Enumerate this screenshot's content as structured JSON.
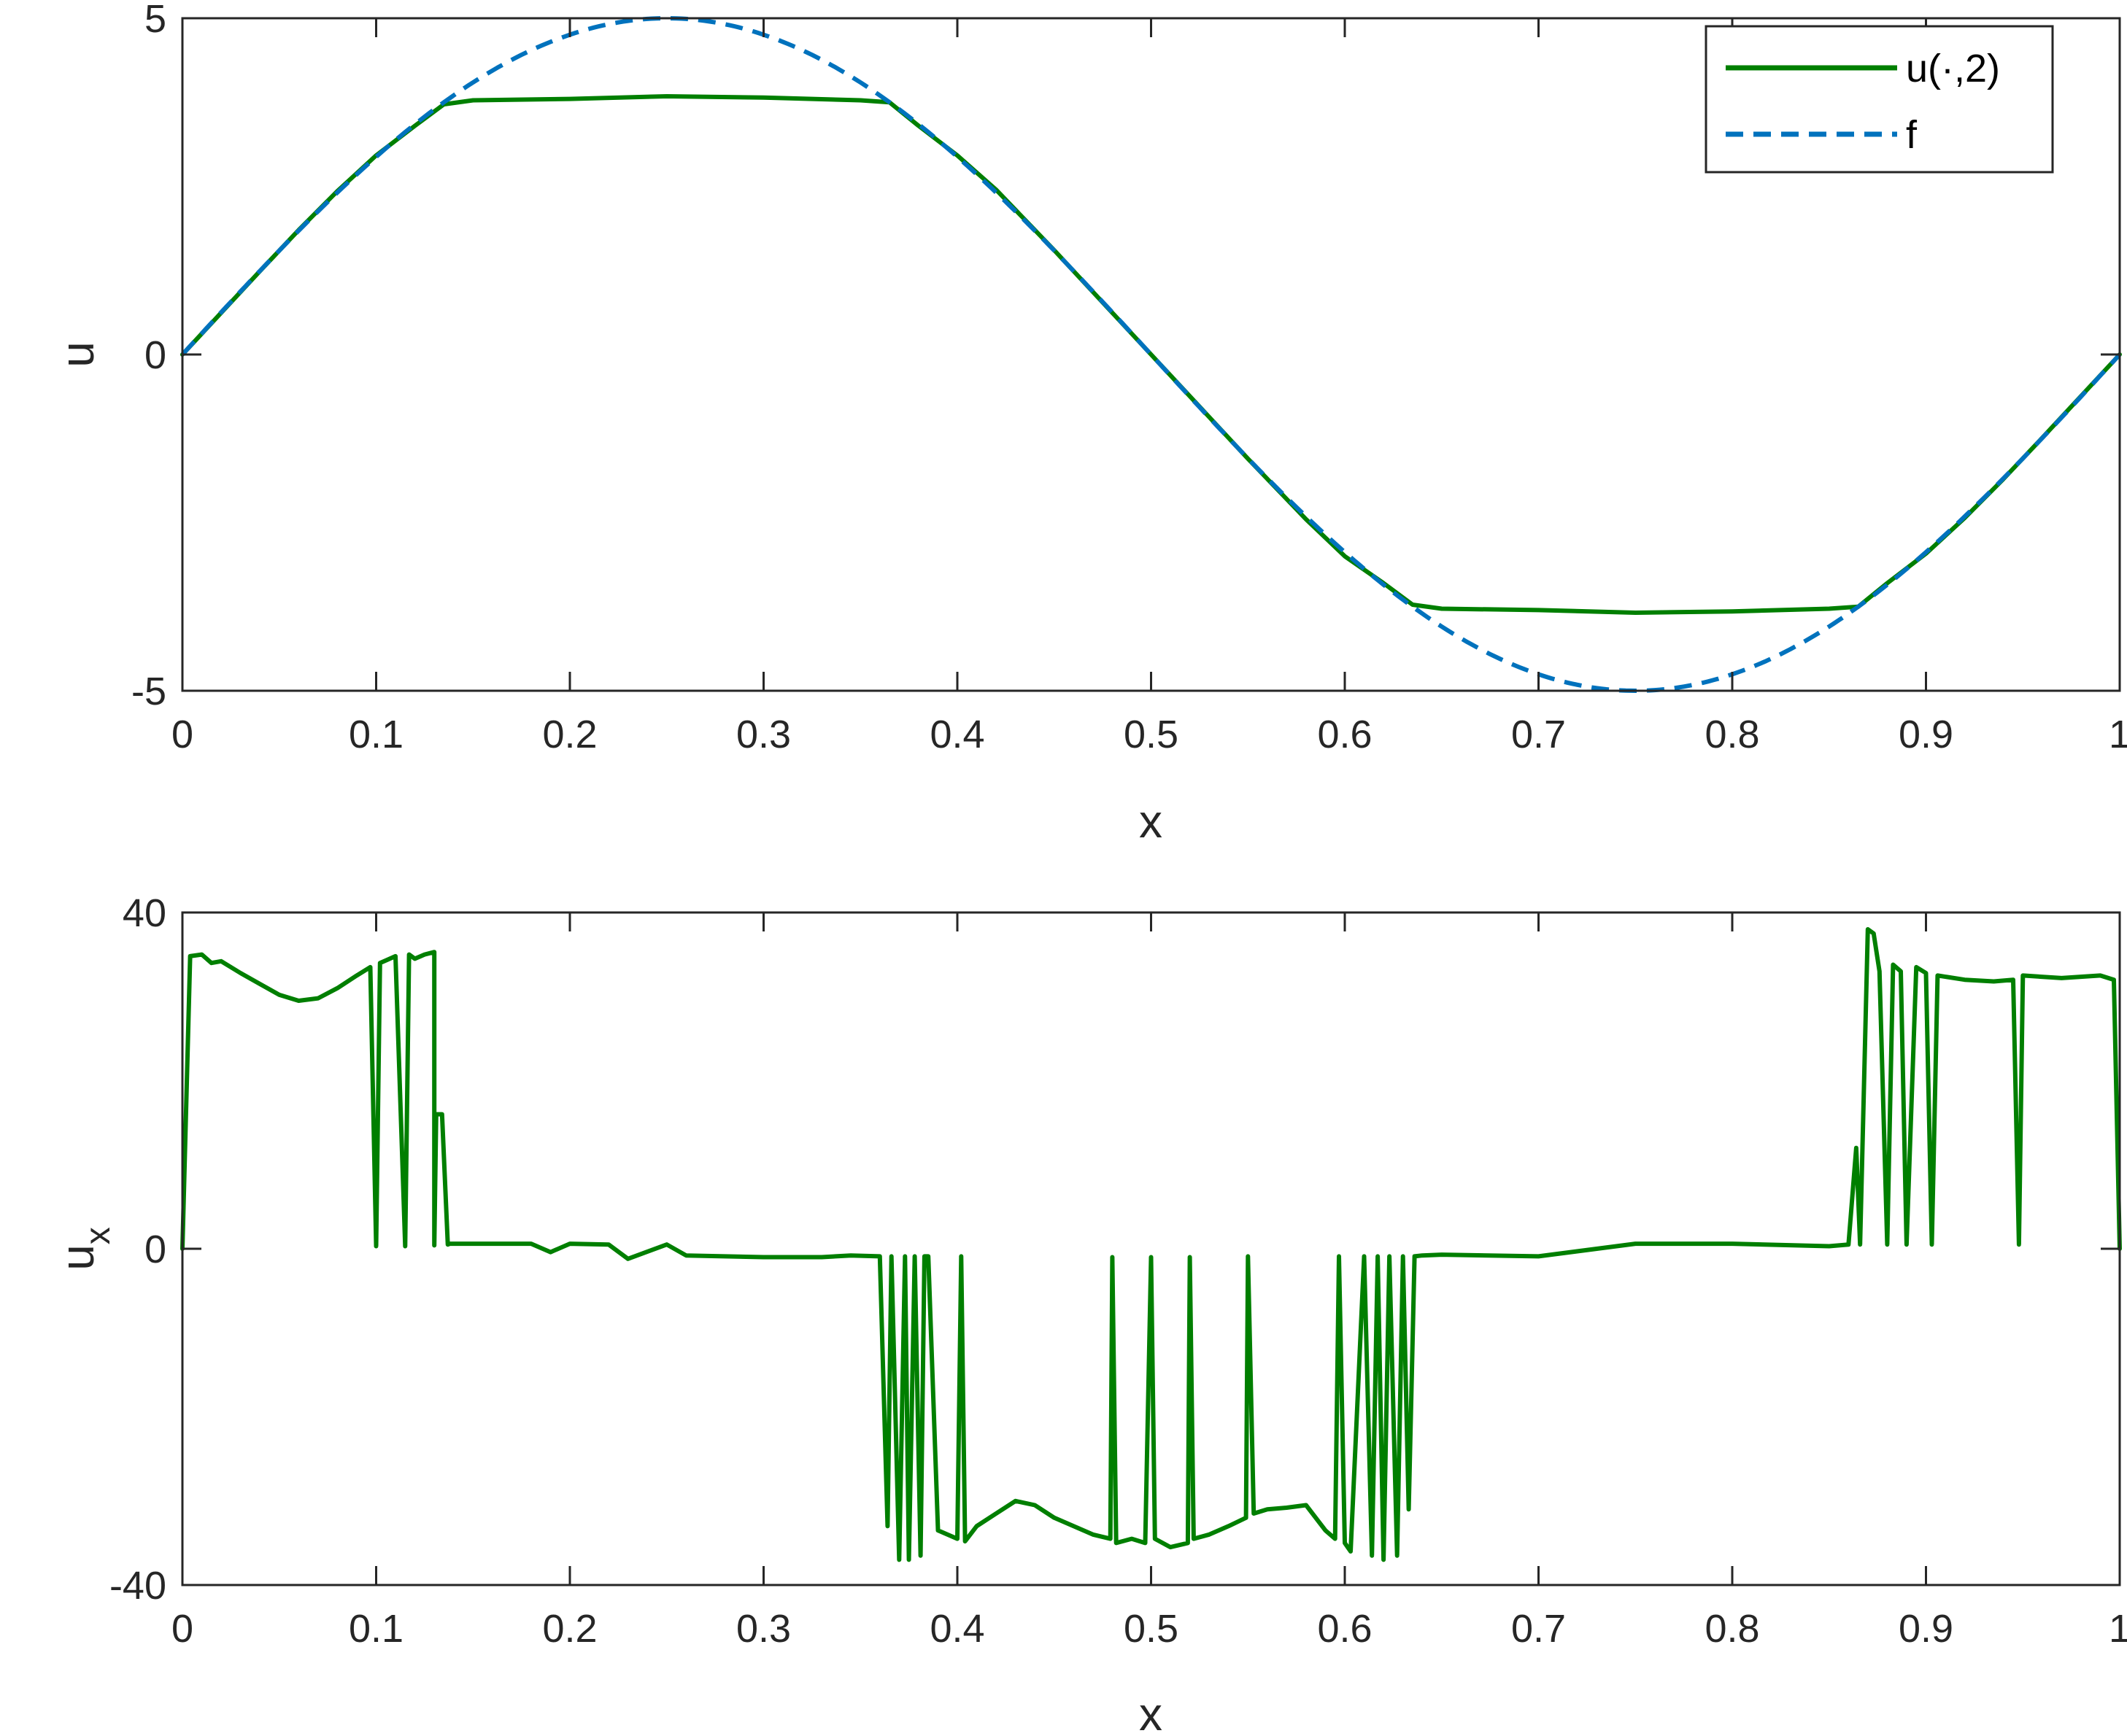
{
  "chart_data": [
    {
      "type": "line",
      "xlabel": "x",
      "ylabel": "u",
      "xlim": [
        0,
        1
      ],
      "ylim": [
        -5,
        5
      ],
      "xticks": [
        0,
        0.1,
        0.2,
        0.3,
        0.4,
        0.5,
        0.6,
        0.7,
        0.8,
        0.9,
        1
      ],
      "xtick_labels": [
        "0",
        "0.1",
        "0.2",
        "0.3",
        "0.4",
        "0.5",
        "0.6",
        "0.7",
        "0.8",
        "0.9",
        "1"
      ],
      "yticks": [
        -5,
        0,
        5
      ],
      "ytick_labels": [
        "-5",
        "0",
        "5"
      ],
      "grid": false,
      "legend_position": "top-right",
      "series": [
        {
          "name": "u(·,2)",
          "color": "#007F00",
          "style": "solid",
          "x": [
            0,
            0.02,
            0.04,
            0.06,
            0.08,
            0.1,
            0.12,
            0.135,
            0.15,
            0.2,
            0.25,
            0.3,
            0.35,
            0.365,
            0.38,
            0.4,
            0.42,
            0.45,
            0.48,
            0.5,
            0.52,
            0.55,
            0.58,
            0.6,
            0.62,
            0.635,
            0.65,
            0.7,
            0.75,
            0.8,
            0.85,
            0.865,
            0.88,
            0.9,
            0.92,
            0.94,
            0.96,
            0.98,
            1
          ],
          "y": [
            0,
            0.62,
            1.24,
            1.85,
            2.43,
            2.96,
            3.4,
            3.72,
            3.78,
            3.8,
            3.84,
            3.82,
            3.78,
            3.75,
            3.4,
            2.96,
            2.45,
            1.55,
            0.62,
            0.0,
            -0.62,
            -1.55,
            -2.45,
            -3.0,
            -3.4,
            -3.72,
            -3.78,
            -3.8,
            -3.84,
            -3.82,
            -3.78,
            -3.75,
            -3.4,
            -2.96,
            -2.43,
            -1.85,
            -1.24,
            -0.62,
            0
          ]
        },
        {
          "name": "f",
          "color": "#0072BD",
          "style": "dashed",
          "function": "5*sin(2*pi*x)"
        }
      ]
    },
    {
      "type": "line",
      "xlabel": "x",
      "ylabel": "u",
      "ylabel_subscript": "x",
      "xlim": [
        0,
        1
      ],
      "ylim": [
        -40,
        40
      ],
      "xticks": [
        0,
        0.1,
        0.2,
        0.3,
        0.4,
        0.5,
        0.6,
        0.7,
        0.8,
        0.9,
        1
      ],
      "xtick_labels": [
        "0",
        "0.1",
        "0.2",
        "0.3",
        "0.4",
        "0.5",
        "0.6",
        "0.7",
        "0.8",
        "0.9",
        "1"
      ],
      "yticks": [
        -40,
        0,
        40
      ],
      "ytick_labels": [
        "-40",
        "0",
        "40"
      ],
      "grid": false,
      "series": [
        {
          "color": "#007F00",
          "style": "solid",
          "x": [
            0,
            0.004,
            0.01,
            0.015,
            0.02,
            0.03,
            0.04,
            0.05,
            0.06,
            0.07,
            0.08,
            0.09,
            0.097,
            0.1,
            0.102,
            0.105,
            0.11,
            0.115,
            0.117,
            0.12,
            0.125,
            0.13,
            0.13,
            0.131,
            0.134,
            0.137,
            0.138,
            0.14,
            0.15,
            0.18,
            0.19,
            0.2,
            0.22,
            0.23,
            0.25,
            0.26,
            0.3,
            0.33,
            0.345,
            0.36,
            0.364,
            0.366,
            0.37,
            0.373,
            0.375,
            0.378,
            0.381,
            0.383,
            0.385,
            0.39,
            0.4,
            0.402,
            0.404,
            0.41,
            0.42,
            0.43,
            0.44,
            0.45,
            0.46,
            0.47,
            0.479,
            0.48,
            0.482,
            0.49,
            0.497,
            0.5,
            0.502,
            0.51,
            0.519,
            0.52,
            0.522,
            0.53,
            0.54,
            0.549,
            0.55,
            0.553,
            0.56,
            0.57,
            0.58,
            0.59,
            0.595,
            0.597,
            0.6,
            0.603,
            0.61,
            0.614,
            0.617,
            0.62,
            0.623,
            0.627,
            0.63,
            0.633,
            0.636,
            0.64,
            0.65,
            0.7,
            0.75,
            0.8,
            0.85,
            0.86,
            0.864,
            0.866,
            0.87,
            0.873,
            0.876,
            0.88,
            0.883,
            0.887,
            0.89,
            0.895,
            0.9,
            0.903,
            0.906,
            0.92,
            0.935,
            0.945,
            0.948,
            0.95,
            0.97,
            0.99,
            0.997,
            1
          ],
          "y": [
            0,
            34.8,
            35.0,
            34.0,
            34.2,
            32.8,
            31.5,
            30.2,
            29.5,
            29.8,
            31.0,
            32.5,
            33.5,
            0.3,
            34.0,
            34.3,
            34.8,
            0.3,
            35.0,
            34.5,
            35.0,
            35.3,
            0.4,
            16.0,
            16.0,
            0.5,
            0.6,
            0.6,
            0.6,
            0.6,
            -0.4,
            0.6,
            0.5,
            -1.2,
            0.5,
            -0.8,
            -1.0,
            -1.0,
            -0.8,
            -0.9,
            -33.0,
            -0.9,
            -37.0,
            -0.9,
            -37.0,
            -0.9,
            -36.5,
            -0.9,
            -0.9,
            -33.5,
            -34.5,
            -0.9,
            -34.8,
            -33.0,
            -31.5,
            -30.0,
            -30.5,
            -32.0,
            -33.0,
            -34.0,
            -34.5,
            -1.0,
            -35.0,
            -34.5,
            -35.0,
            -1.0,
            -34.5,
            -35.5,
            -35.0,
            -1.0,
            -34.5,
            -34.0,
            -33.0,
            -32.0,
            -0.9,
            -31.5,
            -31.0,
            -30.8,
            -30.5,
            -33.5,
            -34.5,
            -0.9,
            -35.0,
            -36.0,
            -0.9,
            -36.5,
            -0.9,
            -37.0,
            -0.9,
            -36.5,
            -0.9,
            -31.0,
            -0.9,
            -0.8,
            -0.7,
            -0.9,
            0.6,
            0.6,
            0.3,
            0.5,
            12.0,
            0.5,
            38.0,
            37.5,
            33.0,
            0.5,
            33.8,
            33.0,
            0.5,
            33.5,
            32.8,
            0.5,
            32.5,
            32.0,
            31.8,
            32.0,
            0.5,
            32.5,
            32.2,
            32.5,
            32.0,
            0
          ]
        }
      ]
    }
  ]
}
